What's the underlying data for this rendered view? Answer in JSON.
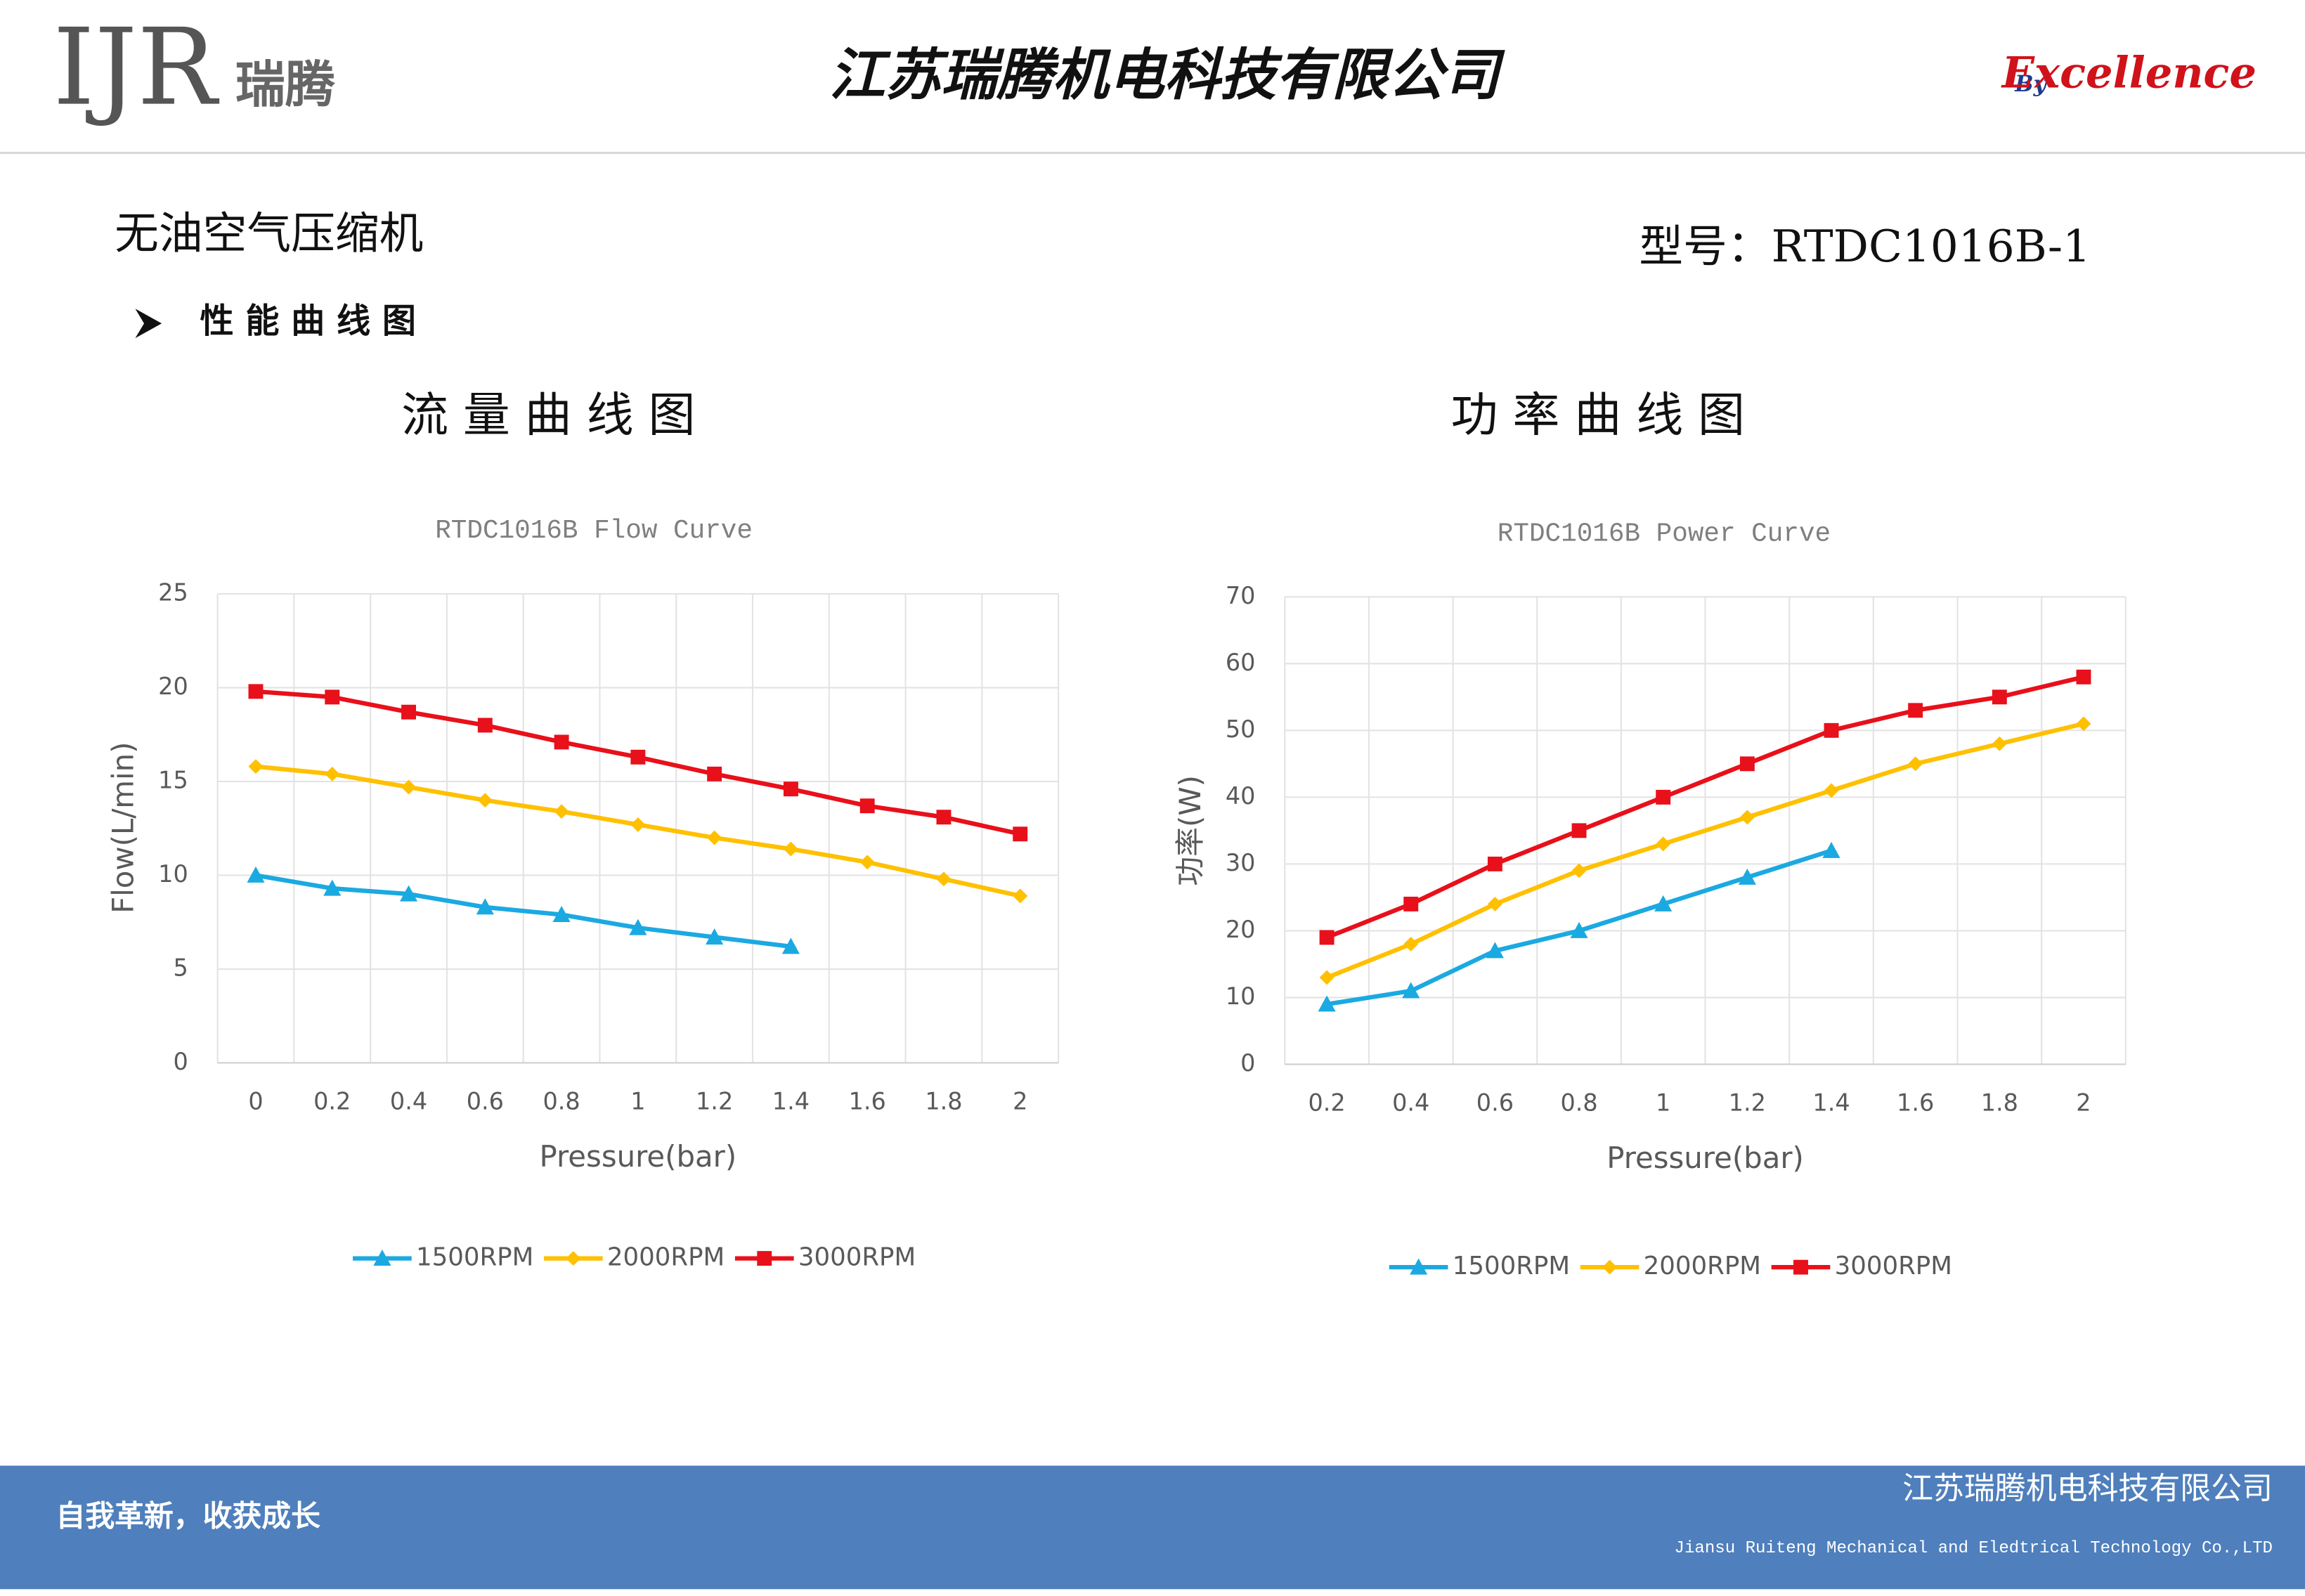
{
  "header": {
    "logo_mark": "IJR",
    "logo_text": "瑞腾",
    "title": "江苏瑞腾机电科技有限公司",
    "slogan_by": "By",
    "slogan": "Excellence"
  },
  "product": "无油空气压缩机",
  "model": "型号：RTDC1016B-1",
  "section": "性能曲线图",
  "chart_heads": [
    "流量曲线图",
    "功率曲线图"
  ],
  "chart_data": [
    {
      "type": "line",
      "title": "RTDC1016B Flow Curve",
      "x_label": "Pressure(bar)",
      "y_label": "Flow(L/min)",
      "categories": [
        "0",
        "0.2",
        "0.4",
        "0.6",
        "0.8",
        "1",
        "1.2",
        "1.4",
        "1.6",
        "1.8",
        "2"
      ],
      "ylim": [
        0,
        25
      ],
      "yticks": [
        0,
        5,
        10,
        15,
        20,
        25
      ],
      "grid": true,
      "legend": "bottom",
      "series": [
        {
          "name": "1500RPM",
          "color": "#1ba9e1",
          "marker": "triangle",
          "values": [
            10,
            9.3,
            9.0,
            8.3,
            7.9,
            7.2,
            6.7,
            6.2,
            null,
            null,
            null
          ]
        },
        {
          "name": "2000RPM",
          "color": "#ffc000",
          "marker": "diamond",
          "values": [
            15.8,
            15.4,
            14.7,
            14.0,
            13.4,
            12.7,
            12.0,
            11.4,
            10.7,
            9.8,
            8.9
          ]
        },
        {
          "name": "3000RPM",
          "color": "#e8101a",
          "marker": "square",
          "values": [
            19.8,
            19.5,
            18.7,
            18.0,
            17.1,
            16.3,
            15.4,
            14.6,
            13.7,
            13.1,
            12.2
          ]
        }
      ]
    },
    {
      "type": "line",
      "title": "RTDC1016B Power Curve",
      "x_label": "Pressure(bar)",
      "y_label": "功率(W)",
      "categories": [
        "0.2",
        "0.4",
        "0.6",
        "0.8",
        "1",
        "1.2",
        "1.4",
        "1.6",
        "1.8",
        "2"
      ],
      "ylim": [
        0,
        70
      ],
      "yticks": [
        0,
        10,
        20,
        30,
        40,
        50,
        60,
        70
      ],
      "grid": true,
      "legend": "bottom",
      "series": [
        {
          "name": "1500RPM",
          "color": "#1ba9e1",
          "marker": "triangle",
          "values": [
            9,
            11,
            17,
            20,
            24,
            28,
            32,
            null,
            null,
            null
          ]
        },
        {
          "name": "2000RPM",
          "color": "#ffc000",
          "marker": "diamond",
          "values": [
            13,
            18,
            24,
            29,
            33,
            37,
            41,
            45,
            48,
            51
          ]
        },
        {
          "name": "3000RPM",
          "color": "#e8101a",
          "marker": "square",
          "values": [
            19,
            24,
            30,
            35,
            40,
            45,
            50,
            53,
            55,
            58
          ]
        }
      ]
    }
  ],
  "footer": {
    "motto": "自我革新，收获成长",
    "company_cn": "江苏瑞腾机电科技有限公司",
    "company_en": "Jiansu Ruiteng Mechanical and Eledtrical Technology Co.,LTD"
  }
}
